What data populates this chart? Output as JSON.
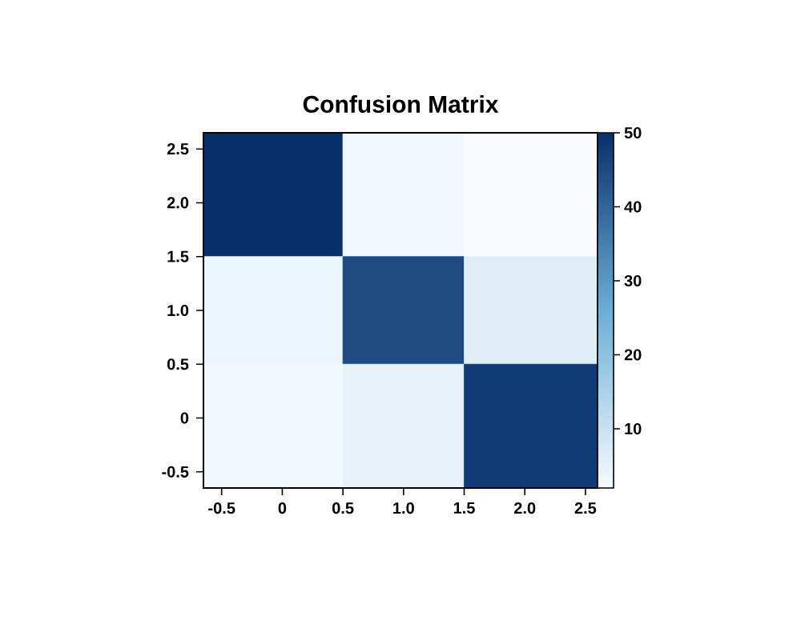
{
  "chart_data": {
    "type": "heatmap",
    "title": "Confusion Matrix",
    "x": [
      0,
      1,
      2
    ],
    "y": [
      2,
      1,
      0
    ],
    "cells": [
      [
        50,
        3,
        2
      ],
      [
        4,
        45,
        6
      ],
      [
        3,
        5,
        48
      ]
    ],
    "xlim": [
      -0.65,
      2.6
    ],
    "xticks": [
      -0.5,
      0,
      0.5,
      {
        "value": 1,
        "label": "1.0"
      },
      1.5,
      {
        "value": 2,
        "label": "2.0"
      },
      2.5
    ],
    "ylim": [
      -0.65,
      2.65
    ],
    "yticks": [
      -0.5,
      0,
      0.5,
      {
        "value": 1,
        "label": "1.0"
      },
      1.5,
      {
        "value": 2,
        "label": "2.0"
      },
      2.5
    ],
    "clim": [
      2,
      50
    ],
    "cticks": [
      10,
      20,
      30,
      40,
      50
    ]
  }
}
